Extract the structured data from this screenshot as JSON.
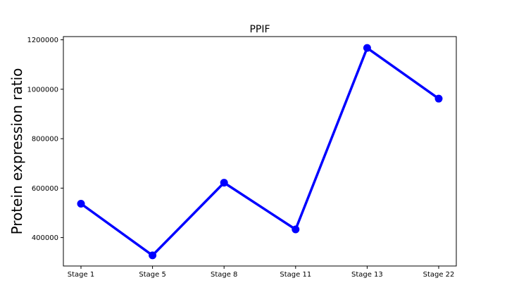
{
  "chart_data": {
    "type": "line",
    "title": "PPIF",
    "xlabel": "",
    "ylabel": "Protein expression ratio",
    "categories": [
      "Stage 1",
      "Stage 5",
      "Stage 8",
      "Stage 11",
      "Stage 13",
      "Stage 22"
    ],
    "series": [
      {
        "values": [
          537000,
          328000,
          622000,
          433000,
          1167000,
          962000
        ],
        "color": "#0000ff",
        "marker": "circle"
      }
    ],
    "ylim": [
      285000,
      1213000
    ],
    "yticks": [
      400000,
      600000,
      800000,
      1000000,
      1200000
    ],
    "ytick_labels": [
      "400000",
      "600000",
      "800000",
      "1000000",
      "1200000"
    ],
    "grid": false,
    "legend": "none"
  }
}
